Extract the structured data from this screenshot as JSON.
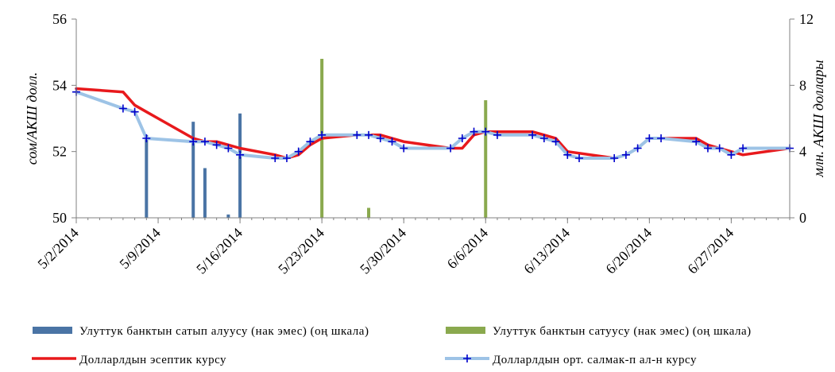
{
  "chart_data": {
    "type": "combo",
    "x_ticks": [
      "5/2/2014",
      "5/9/2014",
      "5/16/2014",
      "5/23/2014",
      "5/30/2014",
      "6/6/2014",
      "6/13/2014",
      "6/20/2014",
      "6/27/2014"
    ],
    "x_range": [
      "2014-05-02",
      "2014-07-02"
    ],
    "y_left": {
      "label": "сом/АКШ долл.",
      "min": 50,
      "max": 56,
      "ticks": [
        "50",
        "52",
        "54",
        "56"
      ]
    },
    "y_right": {
      "label": "млн. АКШ доллары",
      "min": 0,
      "max": 12,
      "ticks": [
        "0",
        "4",
        "8",
        "12"
      ]
    },
    "grid": false,
    "legend_position": "bottom",
    "series": [
      {
        "name": "Улуттук банктын сатып алуусу (нак эмес) (оң шкала)",
        "type": "bar",
        "axis": "right",
        "color": "#4a74a5",
        "points": [
          {
            "x": "2014-05-08",
            "y": 5.0
          },
          {
            "x": "2014-05-12",
            "y": 5.8
          },
          {
            "x": "2014-05-13",
            "y": 3.0
          },
          {
            "x": "2014-05-15",
            "y": 0.2
          },
          {
            "x": "2014-05-16",
            "y": 6.3
          }
        ]
      },
      {
        "name": "Улуттук банктын сатуусу (нак эмес) (оң шкала)",
        "type": "bar",
        "axis": "right",
        "color": "#8aa94e",
        "points": [
          {
            "x": "2014-05-23",
            "y": 9.6
          },
          {
            "x": "2014-05-27",
            "y": 0.6
          },
          {
            "x": "2014-06-06",
            "y": 7.1
          }
        ]
      },
      {
        "name": "Долларлдын эсептик курсу",
        "type": "line",
        "axis": "left",
        "color": "#e8191c",
        "points": [
          {
            "x": "2014-05-02",
            "y": 53.9
          },
          {
            "x": "2014-05-06",
            "y": 53.8
          },
          {
            "x": "2014-05-07",
            "y": 53.4
          },
          {
            "x": "2014-05-08",
            "y": 53.2
          },
          {
            "x": "2014-05-09",
            "y": 53.0
          },
          {
            "x": "2014-05-12",
            "y": 52.4
          },
          {
            "x": "2014-05-13",
            "y": 52.3
          },
          {
            "x": "2014-05-14",
            "y": 52.3
          },
          {
            "x": "2014-05-15",
            "y": 52.2
          },
          {
            "x": "2014-05-16",
            "y": 52.1
          },
          {
            "x": "2014-05-19",
            "y": 51.9
          },
          {
            "x": "2014-05-20",
            "y": 51.8
          },
          {
            "x": "2014-05-21",
            "y": 51.9
          },
          {
            "x": "2014-05-22",
            "y": 52.2
          },
          {
            "x": "2014-05-23",
            "y": 52.4
          },
          {
            "x": "2014-05-26",
            "y": 52.5
          },
          {
            "x": "2014-05-27",
            "y": 52.5
          },
          {
            "x": "2014-05-28",
            "y": 52.5
          },
          {
            "x": "2014-05-29",
            "y": 52.4
          },
          {
            "x": "2014-05-30",
            "y": 52.3
          },
          {
            "x": "2014-06-03",
            "y": 52.1
          },
          {
            "x": "2014-06-04",
            "y": 52.1
          },
          {
            "x": "2014-06-05",
            "y": 52.5
          },
          {
            "x": "2014-06-06",
            "y": 52.6
          },
          {
            "x": "2014-06-10",
            "y": 52.6
          },
          {
            "x": "2014-06-11",
            "y": 52.5
          },
          {
            "x": "2014-06-12",
            "y": 52.4
          },
          {
            "x": "2014-06-13",
            "y": 52.0
          },
          {
            "x": "2014-06-17",
            "y": 51.8
          },
          {
            "x": "2014-06-18",
            "y": 51.9
          },
          {
            "x": "2014-06-19",
            "y": 52.1
          },
          {
            "x": "2014-06-20",
            "y": 52.4
          },
          {
            "x": "2014-06-24",
            "y": 52.4
          },
          {
            "x": "2014-06-25",
            "y": 52.2
          },
          {
            "x": "2014-06-26",
            "y": 52.1
          },
          {
            "x": "2014-06-27",
            "y": 52.0
          },
          {
            "x": "2014-06-28",
            "y": 51.9
          },
          {
            "x": "2014-07-02",
            "y": 52.1
          }
        ]
      },
      {
        "name": "Долларлдын орт. салмак-п ал-н курсу",
        "type": "line",
        "axis": "left",
        "color": "#9dc3e6",
        "marker": "plus",
        "marker_color": "#0000cc",
        "points": [
          {
            "x": "2014-05-02",
            "y": 53.8
          },
          {
            "x": "2014-05-06",
            "y": 53.3
          },
          {
            "x": "2014-05-07",
            "y": 53.2
          },
          {
            "x": "2014-05-08",
            "y": 52.4
          },
          {
            "x": "2014-05-12",
            "y": 52.3
          },
          {
            "x": "2014-05-13",
            "y": 52.3
          },
          {
            "x": "2014-05-14",
            "y": 52.2
          },
          {
            "x": "2014-05-15",
            "y": 52.1
          },
          {
            "x": "2014-05-16",
            "y": 51.9
          },
          {
            "x": "2014-05-19",
            "y": 51.8
          },
          {
            "x": "2014-05-20",
            "y": 51.8
          },
          {
            "x": "2014-05-21",
            "y": 52.0
          },
          {
            "x": "2014-05-22",
            "y": 52.3
          },
          {
            "x": "2014-05-23",
            "y": 52.5
          },
          {
            "x": "2014-05-26",
            "y": 52.5
          },
          {
            "x": "2014-05-27",
            "y": 52.5
          },
          {
            "x": "2014-05-28",
            "y": 52.4
          },
          {
            "x": "2014-05-29",
            "y": 52.3
          },
          {
            "x": "2014-05-30",
            "y": 52.1
          },
          {
            "x": "2014-06-03",
            "y": 52.1
          },
          {
            "x": "2014-06-04",
            "y": 52.4
          },
          {
            "x": "2014-06-05",
            "y": 52.6
          },
          {
            "x": "2014-06-06",
            "y": 52.6
          },
          {
            "x": "2014-06-07",
            "y": 52.5
          },
          {
            "x": "2014-06-10",
            "y": 52.5
          },
          {
            "x": "2014-06-11",
            "y": 52.4
          },
          {
            "x": "2014-06-12",
            "y": 52.3
          },
          {
            "x": "2014-06-13",
            "y": 51.9
          },
          {
            "x": "2014-06-14",
            "y": 51.8
          },
          {
            "x": "2014-06-17",
            "y": 51.8
          },
          {
            "x": "2014-06-18",
            "y": 51.9
          },
          {
            "x": "2014-06-19",
            "y": 52.1
          },
          {
            "x": "2014-06-20",
            "y": 52.4
          },
          {
            "x": "2014-06-21",
            "y": 52.4
          },
          {
            "x": "2014-06-24",
            "y": 52.3
          },
          {
            "x": "2014-06-25",
            "y": 52.1
          },
          {
            "x": "2014-06-26",
            "y": 52.1
          },
          {
            "x": "2014-06-27",
            "y": 51.9
          },
          {
            "x": "2014-06-28",
            "y": 52.1
          },
          {
            "x": "2014-07-02",
            "y": 52.1
          }
        ]
      }
    ]
  }
}
